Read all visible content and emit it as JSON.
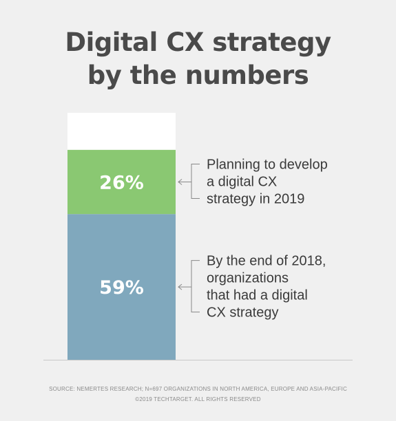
{
  "title": {
    "line1": "Digital CX strategy",
    "line2": "by the numbers"
  },
  "chart_data": {
    "type": "bar",
    "stacked": true,
    "ylim": [
      0,
      100
    ],
    "series": [
      {
        "value": 59,
        "label": "59%",
        "color": "#80a8bd",
        "annotation": [
          "By the end of 2018,",
          "organizations",
          "that had a digital",
          "CX strategy"
        ]
      },
      {
        "value": 26,
        "label": "26%",
        "color": "#8ac872",
        "annotation": [
          "Planning to develop",
          "a digital CX",
          "strategy in 2019"
        ]
      }
    ],
    "remainder_color": "#ffffff",
    "grid": false,
    "legend": "none"
  },
  "footer": {
    "source": "SOURCE: NEMERTES RESEARCH; N=697 ORGANIZATIONS IN NORTH AMERICA, EUROPE AND ASIA-PACIFIC",
    "copyright": "©2019 TECHTARGET. ALL RIGHTS RESERVED"
  }
}
